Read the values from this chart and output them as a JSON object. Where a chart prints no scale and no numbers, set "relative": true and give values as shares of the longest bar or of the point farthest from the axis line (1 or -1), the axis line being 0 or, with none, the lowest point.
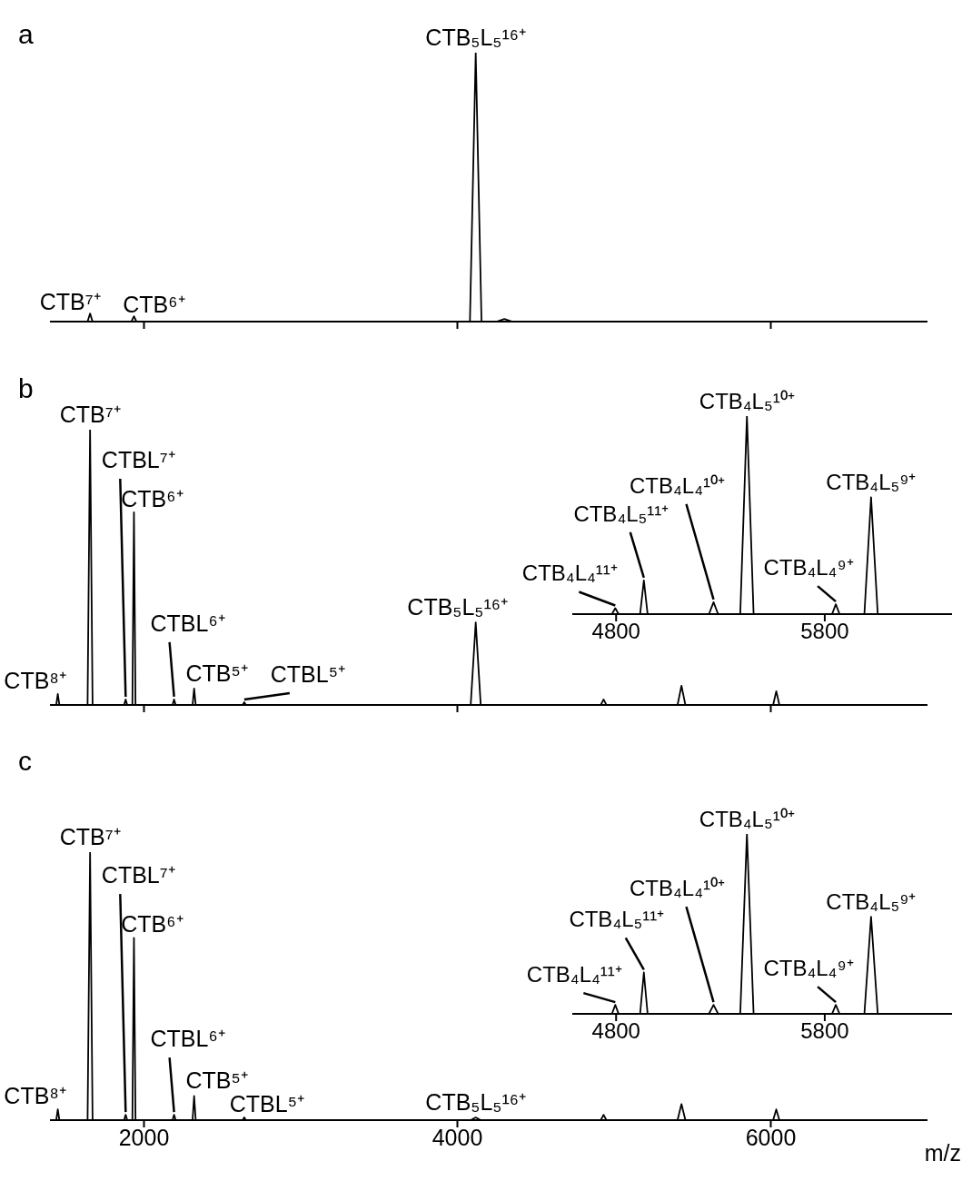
{
  "chart_data": [
    {
      "type": "line",
      "title": "a",
      "relative": true,
      "color": "#000000",
      "xlim": [
        1400,
        7000
      ],
      "xticks": [
        2000,
        4000,
        6000
      ],
      "tick_labels": false,
      "x": [
        1400,
        1640,
        1656,
        1672,
        1920,
        1936,
        1952,
        4080,
        4117,
        4154,
        4250,
        4300,
        4350,
        7000
      ],
      "values": [
        0,
        0,
        0.03,
        0,
        0,
        0.02,
        0,
        0,
        1,
        0,
        0,
        0.01,
        0,
        0
      ],
      "annotations": [
        {
          "text": "CTB⁷⁺",
          "x": 1656,
          "y": 0.03
        },
        {
          "text": "CTB⁶⁺",
          "x": 1936,
          "y": 0.02
        },
        {
          "text": "CTB₅L₅¹⁶⁺",
          "x": 4117,
          "y": 1
        }
      ]
    },
    {
      "type": "line",
      "title": "b",
      "relative": true,
      "color": "#000000",
      "xlim": [
        1400,
        7000
      ],
      "xticks": [
        2000,
        4000,
        6000
      ],
      "tick_labels": false,
      "x": [
        1400,
        1440,
        1450,
        1460,
        1640,
        1656,
        1672,
        1873,
        1883,
        1893,
        1926,
        1936,
        1946,
        2182,
        2192,
        2202,
        2310,
        2320,
        2330,
        2630,
        2640,
        2650,
        4085,
        4117,
        4149,
        4915,
        4933,
        4951,
        5405,
        5430,
        5455,
        6015,
        6035,
        6055,
        7000
      ],
      "values": [
        0,
        0,
        0.04,
        0,
        0,
        1,
        0,
        0,
        0.02,
        0,
        0,
        0.7,
        0,
        0,
        0.02,
        0,
        0,
        0.06,
        0,
        0,
        0.01,
        0,
        0,
        0.3,
        0,
        0,
        0.02,
        0,
        0,
        0.07,
        0,
        0,
        0.05,
        0,
        0
      ],
      "annotations": [
        {
          "text": "CTB⁸⁺",
          "x": 1450,
          "y": 0.04
        },
        {
          "text": "CTB⁷⁺",
          "x": 1656,
          "y": 1
        },
        {
          "text": "CTBL⁷⁺",
          "x": 1883,
          "y": 0.02
        },
        {
          "text": "CTB⁶⁺",
          "x": 1936,
          "y": 0.7
        },
        {
          "text": "CTBL⁶⁺",
          "x": 2192,
          "y": 0.02
        },
        {
          "text": "CTB⁵⁺",
          "x": 2320,
          "y": 0.06
        },
        {
          "text": "CTBL⁵⁺",
          "x": 2640,
          "y": 0.01
        },
        {
          "text": "CTB₅L₅¹⁶⁺",
          "x": 4117,
          "y": 0.3
        }
      ]
    },
    {
      "type": "line",
      "relative": true,
      "color": "#000000",
      "xlim": [
        4590,
        6410
      ],
      "xticks": [
        4800,
        5800
      ],
      "x": [
        4590,
        4780,
        4796,
        4812,
        4915,
        4933,
        4951,
        5245,
        5267,
        5289,
        5395,
        5427,
        5459,
        5835,
        5853,
        5871,
        5990,
        6022,
        6054,
        6410
      ],
      "values": [
        0,
        0,
        0.03,
        0,
        0,
        0.17,
        0,
        0,
        0.06,
        0,
        0,
        1,
        0,
        0,
        0.05,
        0,
        0,
        0.59,
        0,
        0
      ],
      "annotations": [
        {
          "text": "CTB₄L₄¹¹⁺",
          "x": 4796,
          "y": 0.03
        },
        {
          "text": "CTB₄L₅¹¹⁺",
          "x": 4933,
          "y": 0.17
        },
        {
          "text": "CTB₄L₄¹⁰⁺",
          "x": 5267,
          "y": 0.06
        },
        {
          "text": "CTB₄L₅¹⁰⁺",
          "x": 5427,
          "y": 1
        },
        {
          "text": "CTB₄L₄⁹⁺",
          "x": 5853,
          "y": 0.05
        },
        {
          "text": "CTB₄L₅⁹⁺",
          "x": 6022,
          "y": 0.59
        }
      ]
    },
    {
      "type": "line",
      "title": "c",
      "xlabel": "m/z",
      "relative": true,
      "color": "#000000",
      "xlim": [
        1400,
        7000
      ],
      "xticks": [
        2000,
        4000,
        6000
      ],
      "x": [
        1400,
        1440,
        1450,
        1460,
        1640,
        1656,
        1672,
        1873,
        1883,
        1893,
        1926,
        1936,
        1946,
        2182,
        2192,
        2202,
        2310,
        2320,
        2330,
        2630,
        2640,
        2650,
        4085,
        4117,
        4149,
        4915,
        4933,
        4951,
        5405,
        5430,
        5455,
        6015,
        6035,
        6055,
        7000
      ],
      "values": [
        0,
        0,
        0.04,
        0,
        0,
        1,
        0,
        0,
        0.02,
        0,
        0,
        0.68,
        0,
        0,
        0.02,
        0,
        0,
        0.09,
        0,
        0,
        0.01,
        0,
        0,
        0.01,
        0,
        0,
        0.02,
        0,
        0,
        0.06,
        0,
        0,
        0.04,
        0,
        0
      ],
      "annotations": [
        {
          "text": "CTB⁸⁺",
          "x": 1450,
          "y": 0.04
        },
        {
          "text": "CTB⁷⁺",
          "x": 1656,
          "y": 1
        },
        {
          "text": "CTBL⁷⁺",
          "x": 1883,
          "y": 0.02
        },
        {
          "text": "CTB⁶⁺",
          "x": 1936,
          "y": 0.68
        },
        {
          "text": "CTBL⁶⁺",
          "x": 2192,
          "y": 0.02
        },
        {
          "text": "CTB⁵⁺",
          "x": 2320,
          "y": 0.09
        },
        {
          "text": "CTBL⁵⁺",
          "x": 2640,
          "y": 0.01
        },
        {
          "text": "CTB₅L₅¹⁶⁺",
          "x": 4117,
          "y": 0.01
        }
      ]
    },
    {
      "type": "line",
      "relative": true,
      "color": "#000000",
      "xlim": [
        4590,
        6410
      ],
      "xticks": [
        4800,
        5800
      ],
      "x": [
        4590,
        4780,
        4796,
        4812,
        4915,
        4933,
        4951,
        5245,
        5267,
        5289,
        5395,
        5427,
        5459,
        5835,
        5853,
        5871,
        5990,
        6022,
        6054,
        6410
      ],
      "values": [
        0,
        0,
        0.05,
        0,
        0,
        0.23,
        0,
        0,
        0.05,
        0,
        0,
        1,
        0,
        0,
        0.05,
        0,
        0,
        0.54,
        0,
        0
      ],
      "annotations": [
        {
          "text": "CTB₄L₄¹¹⁺",
          "x": 4796,
          "y": 0.05
        },
        {
          "text": "CTB₄L₅¹¹⁺",
          "x": 4933,
          "y": 0.23
        },
        {
          "text": "CTB₄L₄¹⁰⁺",
          "x": 5267,
          "y": 0.05
        },
        {
          "text": "CTB₄L₅¹⁰⁺",
          "x": 5427,
          "y": 1
        },
        {
          "text": "CTB₄L₄⁹⁺",
          "x": 5853,
          "y": 0.05
        },
        {
          "text": "CTB₄L₅⁹⁺",
          "x": 6022,
          "y": 0.54
        }
      ]
    }
  ]
}
